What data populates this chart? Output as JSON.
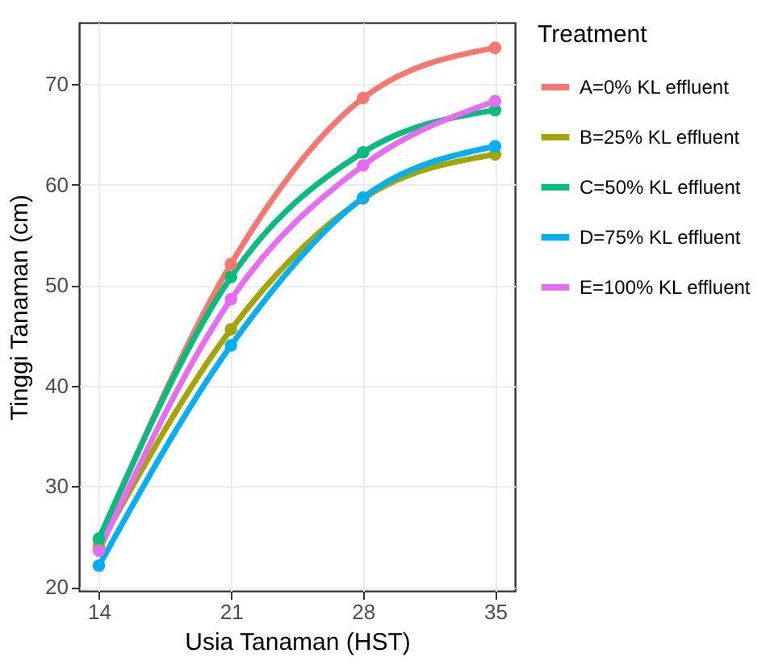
{
  "chart_data": {
    "type": "line",
    "xlabel": "Usia Tanaman (HST)",
    "ylabel": "Tinggi Tanaman (cm)",
    "legend_title": "Treatment",
    "x": [
      14,
      21,
      28,
      35
    ],
    "series": [
      {
        "name": "A=0% KL effluent",
        "color": "#f8766d",
        "values": [
          24.5,
          52.1,
          68.6,
          73.6
        ]
      },
      {
        "name": "B=25% KL effluent",
        "color": "#a3a500",
        "values": [
          24.0,
          45.6,
          58.6,
          63.0
        ]
      },
      {
        "name": "C=50% KL effluent",
        "color": "#00bf7d",
        "values": [
          24.8,
          50.8,
          63.2,
          67.4
        ]
      },
      {
        "name": "D=75% KL effluent",
        "color": "#00b0f6",
        "values": [
          22.1,
          44.0,
          58.7,
          63.8
        ]
      },
      {
        "name": "E=100% KL effluent",
        "color": "#e76bf3",
        "values": [
          23.6,
          48.6,
          61.9,
          68.3
        ]
      }
    ],
    "xlim": [
      12.95,
      36.05
    ],
    "xticks": [
      14,
      21,
      28,
      35
    ],
    "ylim": [
      19.6,
      76.1
    ],
    "yticks": [
      20,
      30,
      40,
      50,
      60,
      70
    ],
    "grid": true,
    "legend": "right",
    "marker": "circle",
    "line_style": "solid"
  }
}
